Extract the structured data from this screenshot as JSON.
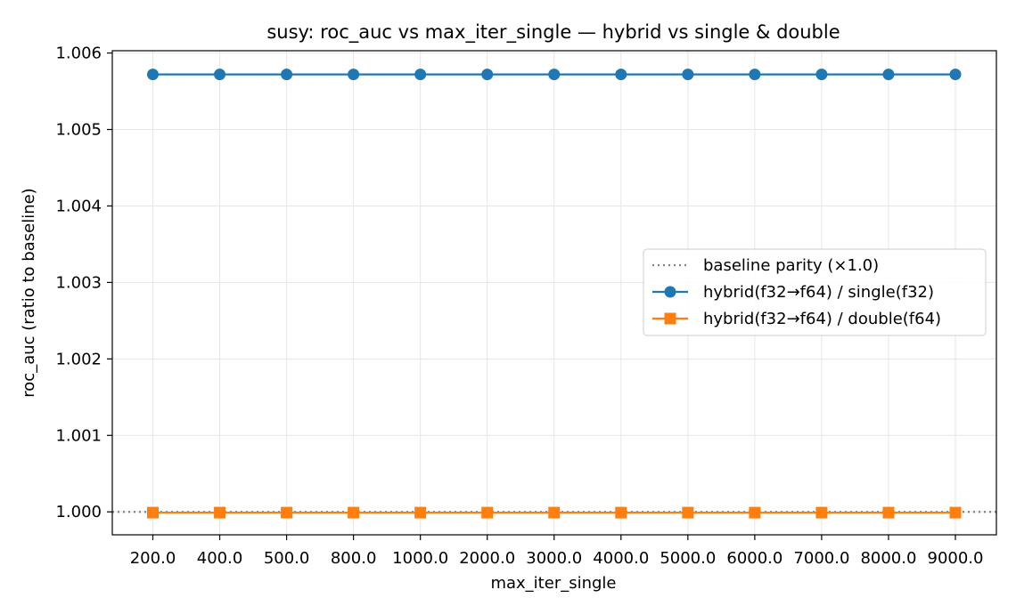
{
  "chart_data": {
    "type": "line",
    "title": "susy: roc_auc vs max_iter_single — hybrid vs single & double",
    "xlabel": "max_iter_single",
    "ylabel": "roc_auc (ratio to baseline)",
    "categories": [
      "200.0",
      "400.0",
      "500.0",
      "800.0",
      "1000.0",
      "2000.0",
      "3000.0",
      "4000.0",
      "5000.0",
      "6000.0",
      "7000.0",
      "8000.0",
      "9000.0"
    ],
    "ylim": [
      0.9997,
      1.00603
    ],
    "yticks": [
      "1.000",
      "1.001",
      "1.002",
      "1.003",
      "1.004",
      "1.005",
      "1.006"
    ],
    "ytick_values": [
      1.0,
      1.001,
      1.002,
      1.003,
      1.004,
      1.005,
      1.006
    ],
    "grid": true,
    "legend_position": "center-right",
    "baseline": {
      "name": "baseline parity (×1.0)",
      "value": 1.0,
      "color": "#808080",
      "style": "dotted"
    },
    "series": [
      {
        "name": "hybrid(f32→f64) / single(f32)",
        "color": "#1f77b4",
        "marker": "circle",
        "values": [
          1.00572,
          1.00572,
          1.00572,
          1.00572,
          1.00572,
          1.00572,
          1.00572,
          1.00572,
          1.00572,
          1.00572,
          1.00572,
          1.00572,
          1.00572
        ]
      },
      {
        "name": "hybrid(f32→f64) / double(f64)",
        "color": "#ff7f0e",
        "marker": "square",
        "values": [
          0.99999,
          0.99999,
          0.99999,
          0.99999,
          0.99999,
          0.99999,
          0.99999,
          0.99999,
          0.99999,
          0.99999,
          0.99999,
          0.99999,
          0.99999
        ]
      }
    ]
  }
}
